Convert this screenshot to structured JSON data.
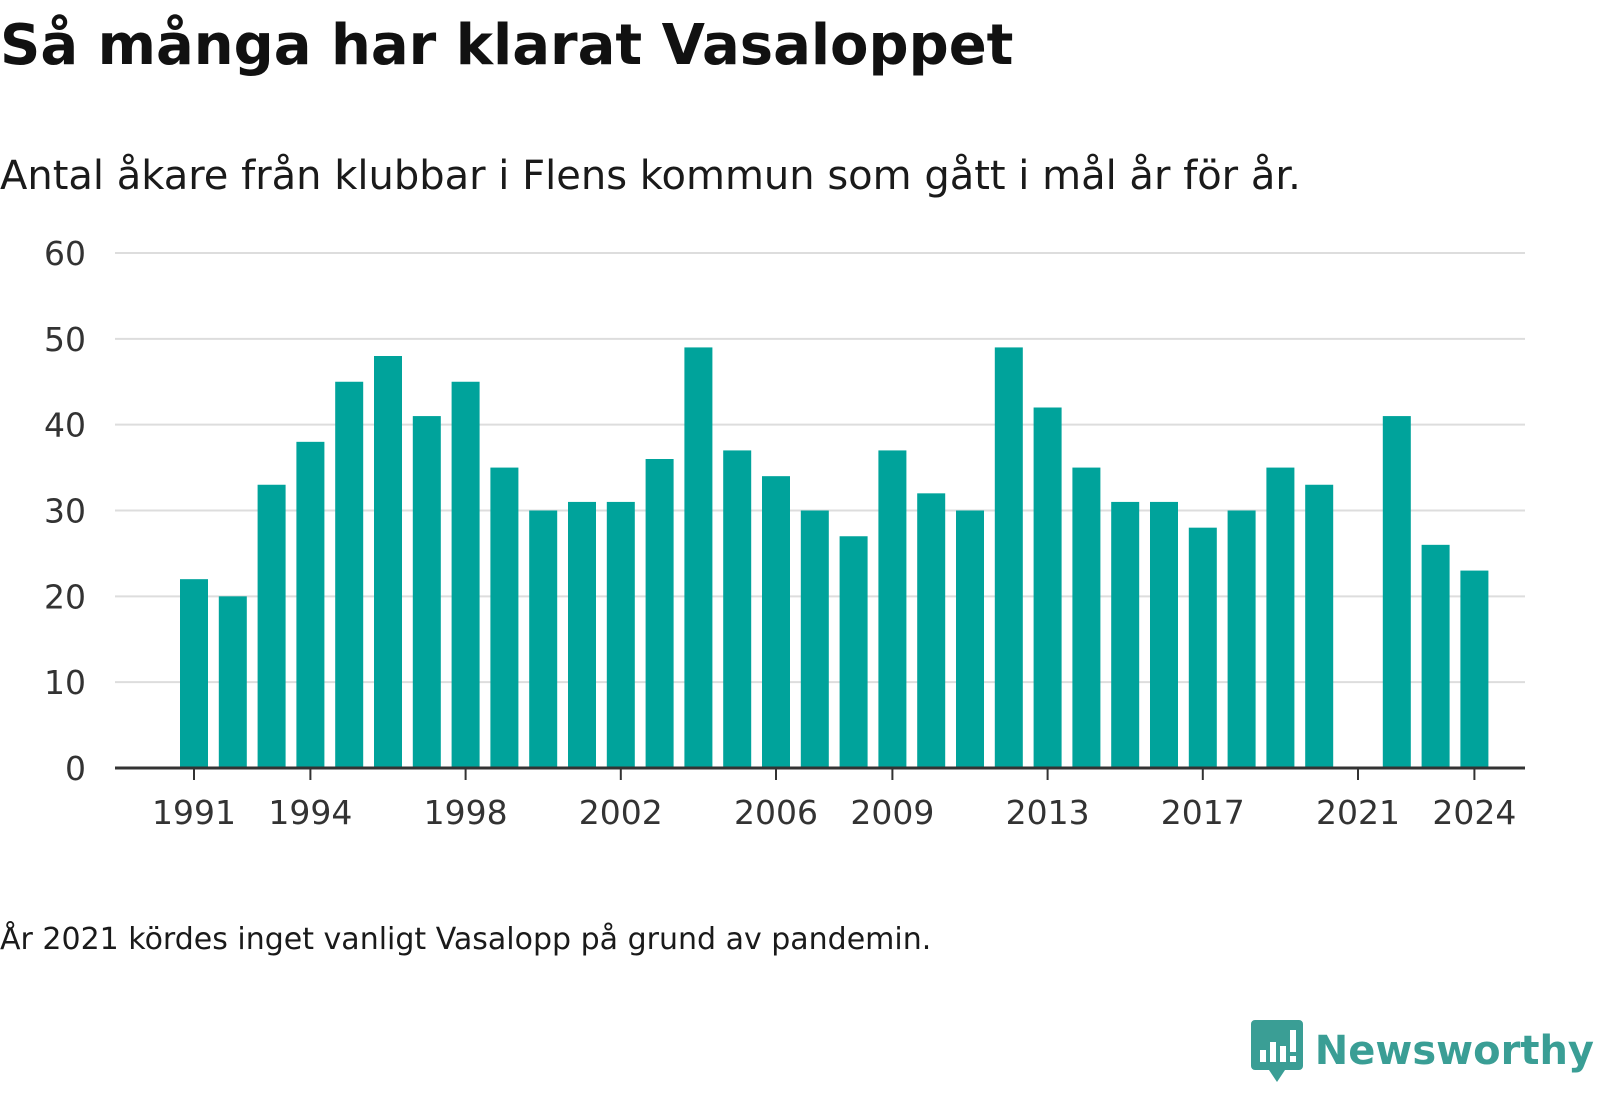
{
  "header": {
    "title": "Så många har klarat Vasaloppet",
    "subtitle": "Antal åkare från klubbar i Flens kommun som gått i mål år för år."
  },
  "note": "År 2021 kördes inget vanligt Vasalopp på grund av pandemin.",
  "brand": {
    "name": "Newsworthy",
    "icon": "newsworthy-logo-icon",
    "color": "#3a9e95"
  },
  "colors": {
    "bar": "#00a39b",
    "grid": "#dddddd",
    "axis": "#333333"
  },
  "chart_data": {
    "type": "bar",
    "title": "Så många har klarat Vasaloppet",
    "subtitle": "Antal åkare från klubbar i Flens kommun som gått i mål år för år.",
    "categories": [
      1991,
      1992,
      1993,
      1994,
      1995,
      1996,
      1997,
      1998,
      1999,
      2000,
      2001,
      2002,
      2003,
      2004,
      2005,
      2006,
      2007,
      2008,
      2009,
      2010,
      2011,
      2012,
      2013,
      2014,
      2015,
      2016,
      2017,
      2018,
      2019,
      2020,
      2021,
      2022,
      2023,
      2024
    ],
    "values": [
      22,
      20,
      33,
      38,
      45,
      48,
      41,
      45,
      35,
      30,
      31,
      31,
      36,
      49,
      37,
      34,
      30,
      27,
      37,
      32,
      30,
      49,
      42,
      35,
      31,
      31,
      28,
      30,
      35,
      33,
      null,
      41,
      26,
      23
    ],
    "xticks": [
      1991,
      1994,
      1998,
      2002,
      2006,
      2009,
      2013,
      2017,
      2021,
      2024
    ],
    "yticks": [
      0,
      10,
      20,
      30,
      40,
      50,
      60
    ],
    "ylim": [
      0,
      60
    ],
    "xlabel": "",
    "ylabel": "",
    "grid": "horizontal",
    "legend": "none"
  }
}
